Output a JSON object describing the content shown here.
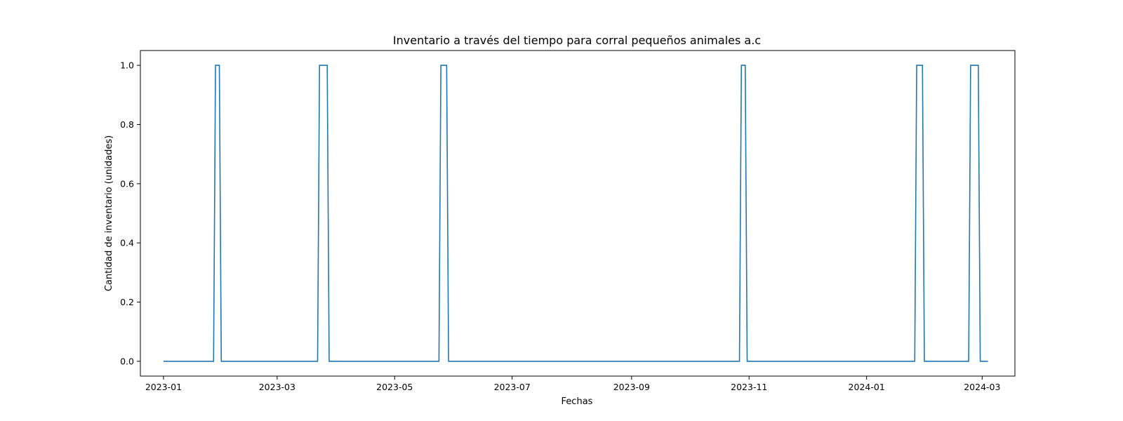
{
  "chart_data": {
    "type": "line",
    "title": "Inventario a través del tiempo para corral pequeños animales a.c",
    "xlabel": "Fechas",
    "ylabel": "Cantidad de inventario (unidades)",
    "xlim": [
      "2022-12-20",
      "2024-03-18"
    ],
    "ylim": [
      -0.05,
      1.05
    ],
    "x_ticks": [
      {
        "value": "2023-01-01",
        "label": "2023-01"
      },
      {
        "value": "2023-03-01",
        "label": "2023-03"
      },
      {
        "value": "2023-05-01",
        "label": "2023-05"
      },
      {
        "value": "2023-07-01",
        "label": "2023-07"
      },
      {
        "value": "2023-09-01",
        "label": "2023-09"
      },
      {
        "value": "2023-11-01",
        "label": "2023-11"
      },
      {
        "value": "2024-01-01",
        "label": "2024-01"
      },
      {
        "value": "2024-03-01",
        "label": "2024-03"
      }
    ],
    "y_ticks": [
      {
        "value": 0.0,
        "label": "0.0"
      },
      {
        "value": 0.2,
        "label": "0.2"
      },
      {
        "value": 0.4,
        "label": "0.4"
      },
      {
        "value": 0.6,
        "label": "0.6"
      },
      {
        "value": 0.8,
        "label": "0.8"
      },
      {
        "value": 1.0,
        "label": "1.0"
      }
    ],
    "grid": false,
    "series": [
      {
        "color": "#1f77b4",
        "points": [
          [
            "2023-01-01",
            0
          ],
          [
            "2023-01-27",
            0
          ],
          [
            "2023-01-28",
            1
          ],
          [
            "2023-01-30",
            1
          ],
          [
            "2023-01-31",
            0
          ],
          [
            "2023-03-22",
            0
          ],
          [
            "2023-03-23",
            1
          ],
          [
            "2023-03-27",
            1
          ],
          [
            "2023-03-28",
            0
          ],
          [
            "2023-05-24",
            0
          ],
          [
            "2023-05-25",
            1
          ],
          [
            "2023-05-28",
            1
          ],
          [
            "2023-05-29",
            0
          ],
          [
            "2023-10-27",
            0
          ],
          [
            "2023-10-28",
            1
          ],
          [
            "2023-10-30",
            1
          ],
          [
            "2023-10-31",
            0
          ],
          [
            "2024-01-26",
            0
          ],
          [
            "2024-01-27",
            1
          ],
          [
            "2024-01-30",
            1
          ],
          [
            "2024-01-31",
            0
          ],
          [
            "2024-02-23",
            0
          ],
          [
            "2024-02-24",
            1
          ],
          [
            "2024-02-28",
            1
          ],
          [
            "2024-02-29",
            0
          ],
          [
            "2024-03-04",
            0
          ]
        ]
      }
    ]
  }
}
